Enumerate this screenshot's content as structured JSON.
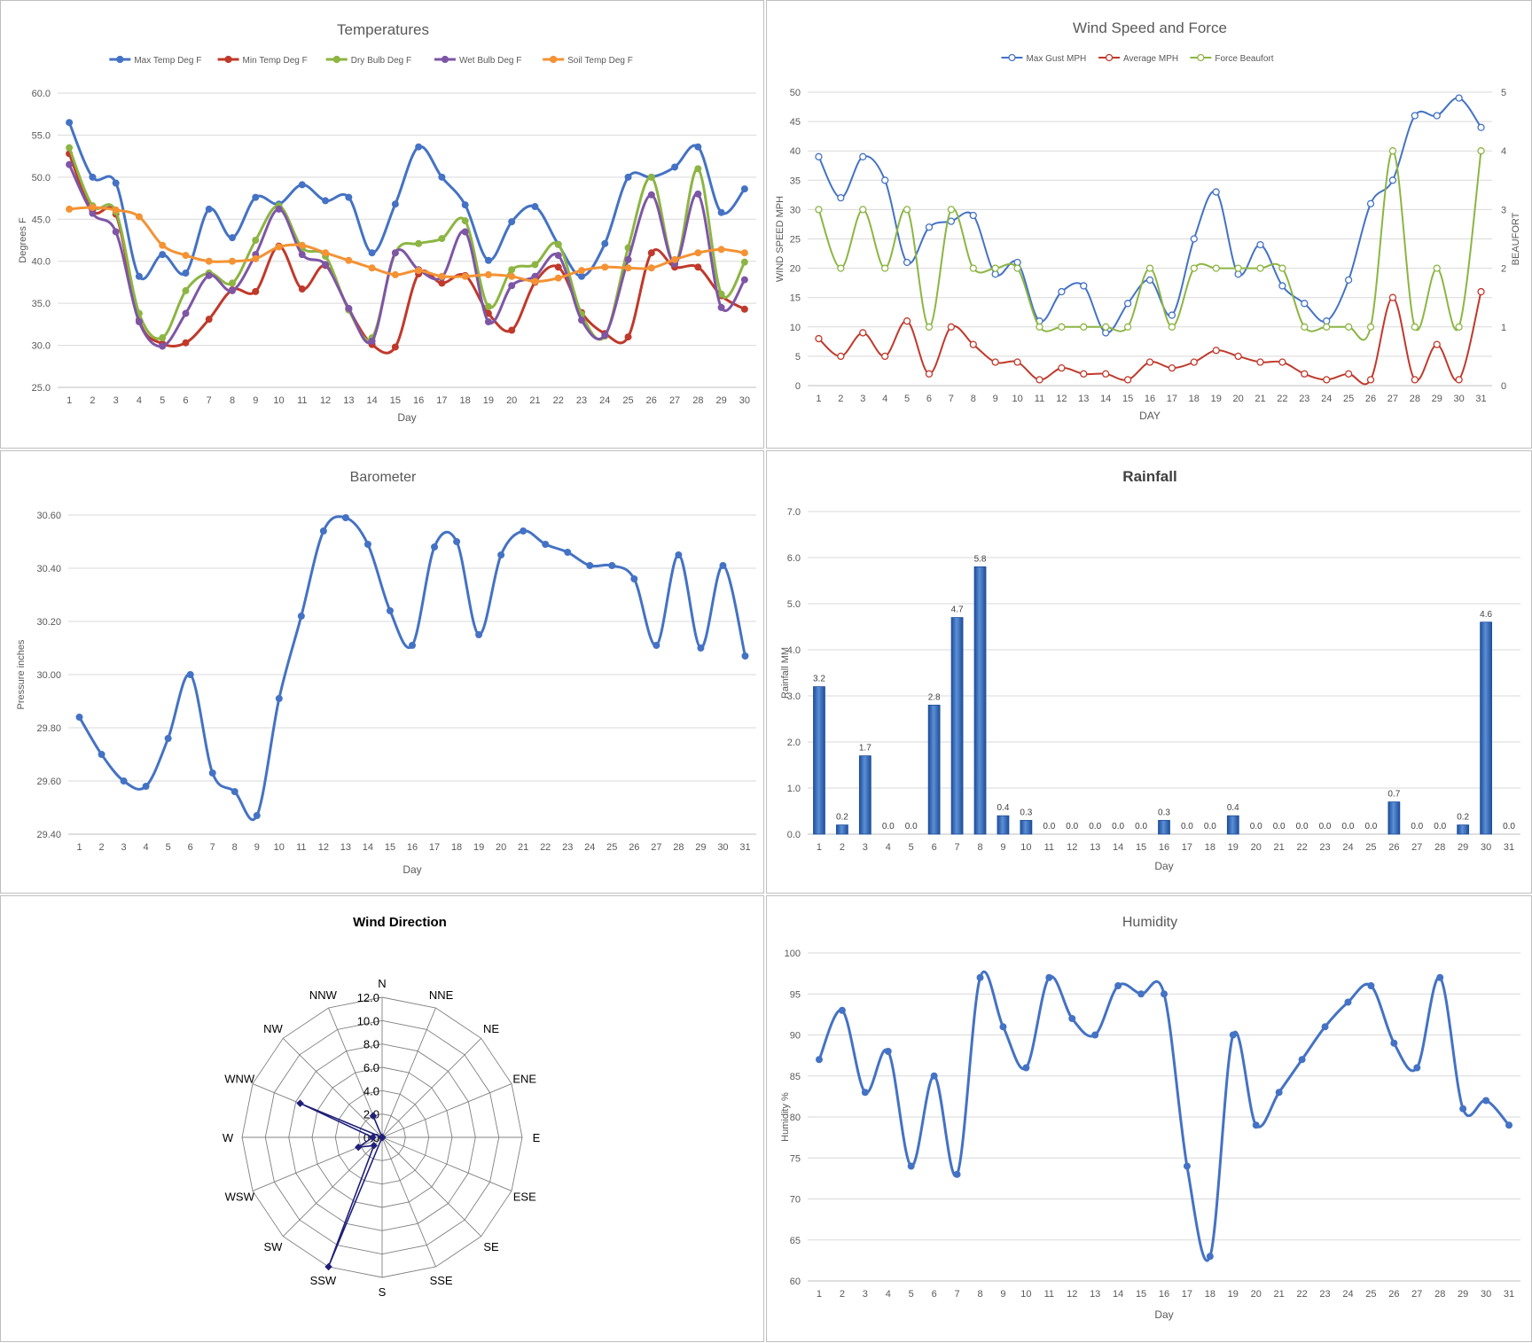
{
  "chart_data": [
    {
      "id": "temperatures",
      "type": "line",
      "title": "Temperatures",
      "xlabel": "Day",
      "ylabel": "Degrees F",
      "ylim": [
        25,
        60
      ],
      "ytick_step": 5,
      "ytick_decimals": 1,
      "grid": true,
      "legend": "top",
      "x": [
        1,
        2,
        3,
        4,
        5,
        6,
        7,
        8,
        9,
        10,
        11,
        12,
        13,
        14,
        15,
        16,
        17,
        18,
        19,
        20,
        21,
        22,
        23,
        24,
        25,
        26,
        27,
        28,
        29,
        30
      ],
      "series": [
        {
          "name": "Max Temp Deg F",
          "color": "#4472c4",
          "values": [
            56.5,
            50.0,
            49.3,
            38.2,
            40.8,
            38.6,
            46.2,
            42.8,
            47.6,
            46.8,
            49.1,
            47.2,
            47.6,
            41.0,
            46.8,
            53.6,
            50.0,
            46.7,
            40.1,
            44.7,
            46.5,
            42.0,
            38.2,
            42.1,
            50.0,
            50.0,
            51.2,
            53.6,
            45.8,
            48.6
          ]
        },
        {
          "name": "Min Temp Deg F",
          "color": "#c0392b",
          "values": [
            52.8,
            46.0,
            45.6,
            33.0,
            30.2,
            30.3,
            33.1,
            36.6,
            36.4,
            41.8,
            36.7,
            39.5,
            34.3,
            30.1,
            29.8,
            38.5,
            37.4,
            38.3,
            33.8,
            31.8,
            37.5,
            39.3,
            33.9,
            31.4,
            31.0,
            41.0,
            39.3,
            39.3,
            35.9,
            34.3
          ]
        },
        {
          "name": "Dry Bulb Deg F",
          "color": "#8cb543",
          "values": [
            53.5,
            46.6,
            45.9,
            33.8,
            30.9,
            36.5,
            38.6,
            37.4,
            42.5,
            46.6,
            41.6,
            40.6,
            34.2,
            30.9,
            41.0,
            42.1,
            42.7,
            44.8,
            34.6,
            39.0,
            39.6,
            42.0,
            33.7,
            31.1,
            41.6,
            50.0,
            39.7,
            51.0,
            36.1,
            39.9
          ]
        },
        {
          "name": "Wet Bulb Deg F",
          "color": "#7e56a5",
          "values": [
            51.5,
            45.7,
            43.5,
            32.8,
            29.9,
            33.8,
            38.3,
            36.5,
            40.8,
            46.2,
            40.8,
            39.6,
            34.4,
            30.5,
            41.0,
            39.0,
            38.1,
            43.5,
            32.8,
            37.1,
            38.2,
            40.7,
            33.0,
            31.2,
            40.2,
            47.9,
            39.7,
            48.0,
            34.5,
            37.8
          ]
        },
        {
          "name": "Soil Temp Deg F",
          "color": "#f49234",
          "values": [
            46.2,
            46.4,
            46.1,
            45.3,
            41.9,
            40.7,
            40.0,
            40.0,
            40.3,
            41.7,
            41.9,
            41.0,
            40.1,
            39.2,
            38.4,
            38.9,
            38.2,
            38.2,
            38.4,
            38.2,
            37.6,
            38.0,
            38.9,
            39.3,
            39.2,
            39.2,
            40.2,
            41.0,
            41.4,
            41.0
          ]
        }
      ]
    },
    {
      "id": "wind",
      "type": "line",
      "title": "Wind Speed and Force",
      "xlabel": "DAY",
      "ylabel": "WIND SPEED MPH",
      "y2label": "BEAUFORT",
      "ylim": [
        0,
        50
      ],
      "ytick_step": 5,
      "ytick_decimals": 0,
      "y2lim": [
        0,
        5
      ],
      "y2tick_step": 1,
      "grid": true,
      "legend": "top",
      "x": [
        1,
        2,
        3,
        4,
        5,
        6,
        7,
        8,
        9,
        10,
        11,
        12,
        13,
        14,
        15,
        16,
        17,
        18,
        19,
        20,
        21,
        22,
        23,
        24,
        25,
        26,
        27,
        28,
        29,
        30,
        31
      ],
      "series": [
        {
          "name": "Max Gust MPH",
          "color": "#4472c4",
          "axis": "left",
          "values": [
            39,
            32,
            39,
            35,
            21,
            27,
            28,
            29,
            19,
            21,
            11,
            16,
            17,
            9,
            14,
            18,
            12,
            25,
            33,
            19,
            24,
            17,
            14,
            11,
            18,
            31,
            35,
            46,
            46,
            49,
            44
          ]
        },
        {
          "name": "Average MPH",
          "color": "#c0392b",
          "axis": "left",
          "values": [
            8,
            5,
            9,
            5,
            11,
            2,
            10,
            7,
            4,
            4,
            1,
            3,
            2,
            2,
            1,
            4,
            3,
            4,
            6,
            5,
            4,
            4,
            2,
            1,
            2,
            1,
            15,
            1,
            7,
            1,
            16
          ]
        },
        {
          "name": "Force Beaufort",
          "color": "#8cb543",
          "axis": "right",
          "values": [
            3,
            2,
            3,
            2,
            3,
            1,
            3,
            2,
            2,
            2,
            1,
            1,
            1,
            1,
            1,
            2,
            1,
            2,
            2,
            2,
            2,
            2,
            1,
            1,
            1,
            1,
            4,
            1,
            2,
            1,
            4
          ]
        }
      ]
    },
    {
      "id": "barometer",
      "type": "line",
      "title": "Barometer",
      "xlabel": "Day",
      "ylabel": "Pressure inches",
      "ylim": [
        29.4,
        30.6
      ],
      "ytick_step": 0.2,
      "ytick_decimals": 2,
      "grid": true,
      "x": [
        1,
        2,
        3,
        4,
        5,
        6,
        7,
        8,
        9,
        10,
        11,
        12,
        13,
        14,
        15,
        16,
        17,
        18,
        19,
        20,
        21,
        22,
        23,
        24,
        25,
        26,
        27,
        28,
        29,
        30,
        31
      ],
      "series": [
        {
          "name": "",
          "color": "#4472c4",
          "values": [
            29.84,
            29.7,
            29.6,
            29.58,
            29.76,
            30.0,
            29.63,
            29.56,
            29.47,
            29.91,
            30.22,
            30.54,
            30.59,
            30.49,
            30.24,
            30.11,
            30.48,
            30.5,
            30.15,
            30.45,
            30.54,
            30.49,
            30.46,
            30.41,
            30.41,
            30.36,
            30.11,
            30.45,
            30.1,
            30.41,
            30.07
          ]
        }
      ]
    },
    {
      "id": "rainfall",
      "type": "bar",
      "title": "Rainfall",
      "xlabel": "Day",
      "ylabel": "Rainfall MM",
      "ylim": [
        0,
        7
      ],
      "ytick_step": 1,
      "ytick_decimals": 1,
      "grid": true,
      "bar_color": "#3a6bb4",
      "categories": [
        "1",
        "2",
        "3",
        "4",
        "5",
        "6",
        "7",
        "8",
        "9",
        "10",
        "11",
        "12",
        "13",
        "14",
        "15",
        "16",
        "17",
        "18",
        "19",
        "20",
        "21",
        "22",
        "23",
        "24",
        "25",
        "26",
        "27",
        "28",
        "29",
        "30",
        "31"
      ],
      "values": [
        3.2,
        0.2,
        1.7,
        0.0,
        0.0,
        2.8,
        4.7,
        5.8,
        0.4,
        0.3,
        0.0,
        0.0,
        0.0,
        0.0,
        0.0,
        0.3,
        0.0,
        0.0,
        0.4,
        0.0,
        0.0,
        0.0,
        0.0,
        0.0,
        0.0,
        0.7,
        0.0,
        0.0,
        0.2,
        4.6,
        0.0
      ],
      "data_labels": [
        "3.2",
        "0.2",
        "1.7",
        "0.0",
        "0.0",
        "2.8",
        "4.7",
        "5.8",
        "0.4",
        "0.3",
        "0.0",
        "0.0",
        "0.0",
        "0.0",
        "0.0",
        "0.3",
        "0.0",
        "0.0",
        "0.4",
        "0.0",
        "0.0",
        "0.0",
        "0.0",
        "0.0",
        "0.0",
        "0.7",
        "0.0",
        "0.0",
        "0.2",
        "4.6",
        "0.0"
      ]
    },
    {
      "id": "wind-direction",
      "type": "radar",
      "title": "Wind Direction",
      "rlim": [
        0,
        12
      ],
      "rtick_step": 2,
      "rtick_labels": [
        "0.0",
        "2.0",
        "4.0",
        "6.0",
        "8.0",
        "10.0",
        "12.0"
      ],
      "color": "#1f1f7a",
      "directions": [
        "N",
        "NNE",
        "NE",
        "ENE",
        "E",
        "ESE",
        "SE",
        "SSE",
        "S",
        "SSW",
        "SW",
        "WSW",
        "W",
        "WNW",
        "NW",
        "NNW"
      ],
      "values": [
        0,
        0,
        0,
        0,
        0,
        0,
        0,
        0,
        0,
        12.0,
        1.0,
        2.2,
        0.8,
        7.6,
        0,
        2.0
      ]
    },
    {
      "id": "humidity",
      "type": "line",
      "title": "Humidity",
      "xlabel": "Day",
      "ylabel": "Humidity %",
      "ylim": [
        60,
        100
      ],
      "ytick_step": 5,
      "ytick_decimals": 0,
      "grid": true,
      "x": [
        1,
        2,
        3,
        4,
        5,
        6,
        7,
        8,
        9,
        10,
        11,
        12,
        13,
        14,
        15,
        16,
        17,
        18,
        19,
        20,
        21,
        22,
        23,
        24,
        25,
        26,
        27,
        28,
        29,
        30,
        31
      ],
      "series": [
        {
          "name": "",
          "color": "#4472c4",
          "values": [
            87,
            93,
            83,
            88,
            74,
            85,
            73,
            97,
            91,
            86,
            97,
            92,
            90,
            96,
            95,
            95,
            74,
            63,
            90,
            79,
            83,
            87,
            91,
            94,
            96,
            89,
            86,
            97,
            81,
            82,
            79
          ]
        }
      ]
    }
  ]
}
